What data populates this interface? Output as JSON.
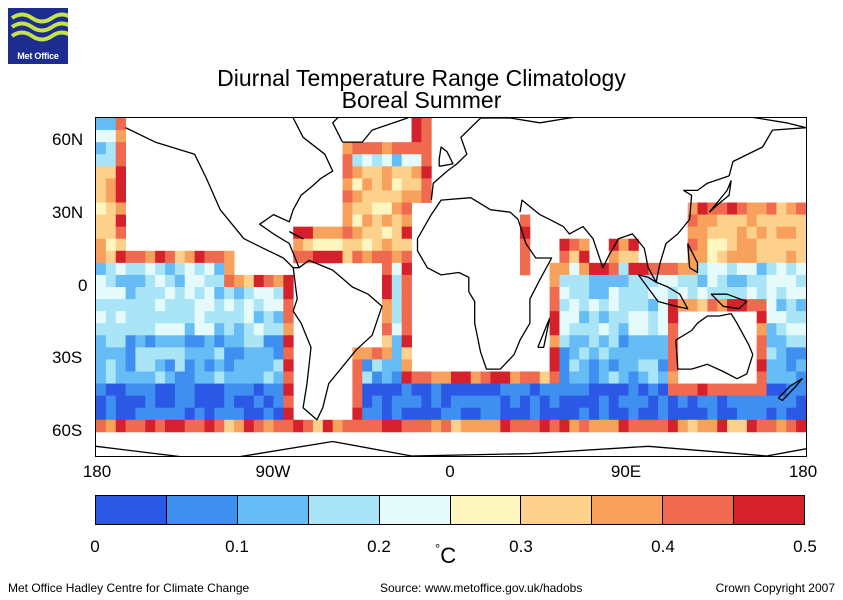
{
  "logo": {
    "text": "Met Office"
  },
  "chart_data": {
    "type": "heatmap",
    "title": "Diurnal Temperature Range Climatology",
    "subtitle": "Boreal Summer",
    "xticks": [
      "180",
      "90W",
      "0",
      "90E",
      "180"
    ],
    "yticks": [
      "60N",
      "30N",
      "0",
      "30S",
      "60S"
    ],
    "xlim": [
      -180,
      180
    ],
    "ylim": [
      -70,
      70
    ],
    "grid_resolution_deg": 5,
    "colorbar": {
      "ticks": [
        "0",
        "0.1",
        "0.2",
        "0.3",
        "0.4",
        "0.5"
      ],
      "unit": "°C",
      "bins": [
        0,
        0.05,
        0.1,
        0.15,
        0.2,
        0.25,
        0.3,
        0.35,
        0.4,
        0.45,
        0.5
      ],
      "colors": [
        "#2b59e6",
        "#3f8ff0",
        "#66bcf4",
        "#a9e4f7",
        "#e5fbfb",
        "#fdf6bf",
        "#fdd18b",
        "#f8a15d",
        "#ef6a4f",
        "#d4212b"
      ]
    },
    "field_summary": {
      "southern_ocean_40S_70S": 0.05,
      "southern_subtropics_20S_35S": 0.12,
      "equatorial_band": 0.18,
      "northern_subtropics_15N_45N": 0.33,
      "coastal_land_margins": 0.48
    }
  },
  "colors": {
    "land": "#ffffff",
    "coastline": "#000000",
    "logo_bg": "#1c2d8f",
    "logo_wave": "#c6e34a"
  },
  "footer": {
    "left": "Met Office Hadley Centre for Climate Change",
    "center": "Source: www.metoffice.gov.uk/hadobs",
    "right": "Crown Copyright 2007"
  }
}
